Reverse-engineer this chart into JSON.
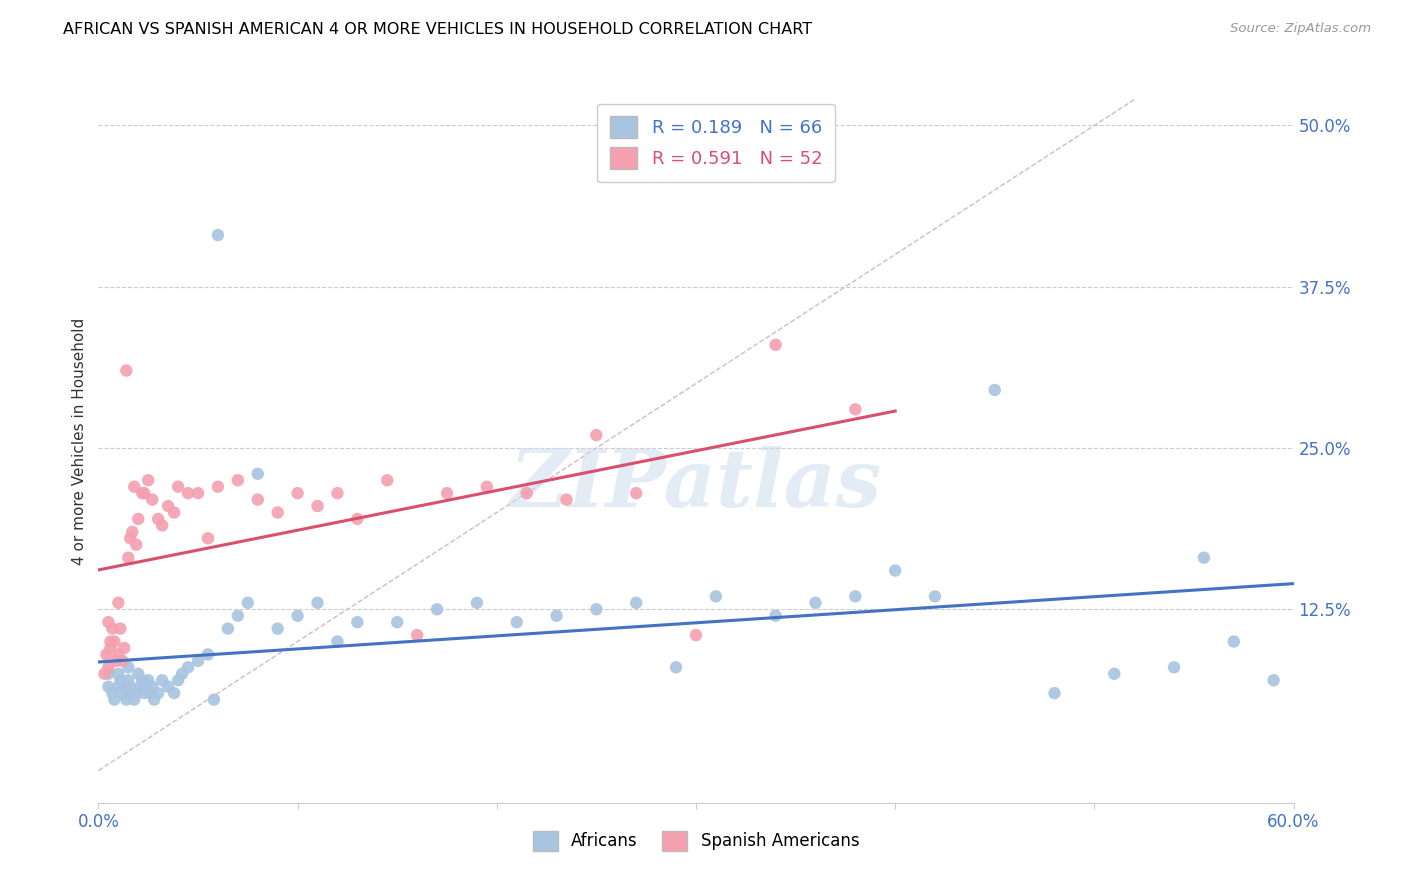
{
  "title": "AFRICAN VS SPANISH AMERICAN 4 OR MORE VEHICLES IN HOUSEHOLD CORRELATION CHART",
  "source": "Source: ZipAtlas.com",
  "ylabel": "4 or more Vehicles in Household",
  "ytick_labels": [
    "50.0%",
    "37.5%",
    "25.0%",
    "12.5%"
  ],
  "ytick_values": [
    0.5,
    0.375,
    0.25,
    0.125
  ],
  "xlim": [
    0.0,
    0.6
  ],
  "ylim": [
    -0.025,
    0.535
  ],
  "africans_color": "#a8c4e0",
  "spanish_color": "#f4a0b0",
  "africans_line_color": "#4472c4",
  "spanish_line_color": "#d94f6e",
  "diagonal_color": "#cccccc",
  "R_africans": 0.189,
  "N_africans": 66,
  "R_spanish": 0.591,
  "N_spanish": 52,
  "watermark": "ZIPatlas",
  "africans_x": [
    0.005,
    0.005,
    0.007,
    0.008,
    0.01,
    0.01,
    0.011,
    0.012,
    0.013,
    0.014,
    0.015,
    0.015,
    0.016,
    0.017,
    0.018,
    0.019,
    0.02,
    0.021,
    0.022,
    0.023,
    0.024,
    0.025,
    0.026,
    0.027,
    0.028,
    0.03,
    0.032,
    0.035,
    0.038,
    0.04,
    0.042,
    0.045,
    0.05,
    0.055,
    0.058,
    0.06,
    0.065,
    0.07,
    0.075,
    0.08,
    0.09,
    0.1,
    0.11,
    0.12,
    0.13,
    0.15,
    0.17,
    0.19,
    0.21,
    0.23,
    0.25,
    0.27,
    0.29,
    0.31,
    0.34,
    0.36,
    0.38,
    0.4,
    0.42,
    0.45,
    0.48,
    0.51,
    0.54,
    0.555,
    0.57,
    0.59
  ],
  "africans_y": [
    0.065,
    0.075,
    0.06,
    0.055,
    0.075,
    0.065,
    0.07,
    0.06,
    0.065,
    0.055,
    0.08,
    0.07,
    0.065,
    0.06,
    0.055,
    0.06,
    0.075,
    0.065,
    0.07,
    0.06,
    0.065,
    0.07,
    0.06,
    0.065,
    0.055,
    0.06,
    0.07,
    0.065,
    0.06,
    0.07,
    0.075,
    0.08,
    0.085,
    0.09,
    0.055,
    0.415,
    0.11,
    0.12,
    0.13,
    0.23,
    0.11,
    0.12,
    0.13,
    0.1,
    0.115,
    0.115,
    0.125,
    0.13,
    0.115,
    0.12,
    0.125,
    0.13,
    0.08,
    0.135,
    0.12,
    0.13,
    0.135,
    0.155,
    0.135,
    0.295,
    0.06,
    0.075,
    0.08,
    0.165,
    0.1,
    0.07
  ],
  "spanish_x": [
    0.003,
    0.004,
    0.005,
    0.005,
    0.006,
    0.006,
    0.007,
    0.008,
    0.009,
    0.01,
    0.01,
    0.011,
    0.012,
    0.013,
    0.014,
    0.015,
    0.016,
    0.017,
    0.018,
    0.019,
    0.02,
    0.022,
    0.023,
    0.025,
    0.027,
    0.03,
    0.032,
    0.035,
    0.038,
    0.04,
    0.045,
    0.05,
    0.055,
    0.06,
    0.07,
    0.08,
    0.09,
    0.1,
    0.11,
    0.12,
    0.13,
    0.145,
    0.16,
    0.175,
    0.195,
    0.215,
    0.235,
    0.25,
    0.27,
    0.3,
    0.34,
    0.38
  ],
  "spanish_y": [
    0.075,
    0.09,
    0.08,
    0.115,
    0.095,
    0.1,
    0.11,
    0.1,
    0.085,
    0.09,
    0.13,
    0.11,
    0.085,
    0.095,
    0.31,
    0.165,
    0.18,
    0.185,
    0.22,
    0.175,
    0.195,
    0.215,
    0.215,
    0.225,
    0.21,
    0.195,
    0.19,
    0.205,
    0.2,
    0.22,
    0.215,
    0.215,
    0.18,
    0.22,
    0.225,
    0.21,
    0.2,
    0.215,
    0.205,
    0.215,
    0.195,
    0.225,
    0.105,
    0.215,
    0.22,
    0.215,
    0.21,
    0.26,
    0.215,
    0.105,
    0.33,
    0.28
  ]
}
